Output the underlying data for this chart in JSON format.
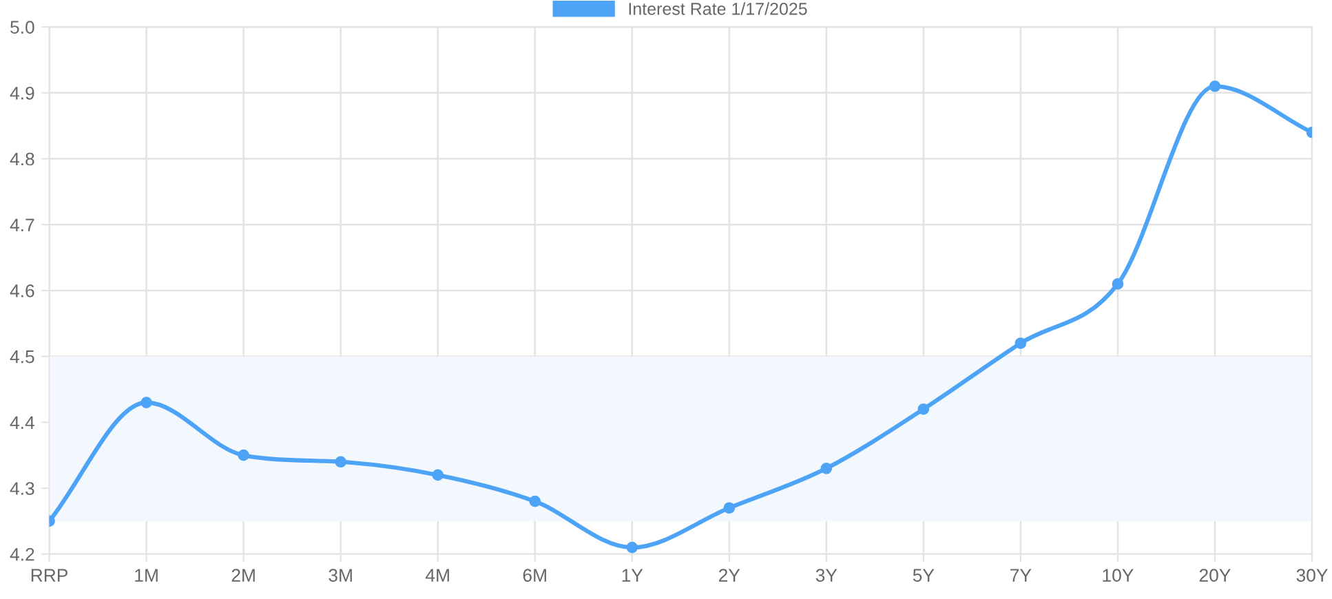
{
  "chart_data": {
    "type": "line",
    "categories": [
      "RRP",
      "1M",
      "2M",
      "3M",
      "4M",
      "6M",
      "1Y",
      "2Y",
      "3Y",
      "5Y",
      "7Y",
      "10Y",
      "20Y",
      "30Y"
    ],
    "series": [
      {
        "name": "Interest Rate 1/17/2025",
        "color": "#4da3f5",
        "values": [
          4.25,
          4.43,
          4.35,
          4.34,
          4.32,
          4.28,
          4.21,
          4.27,
          4.33,
          4.42,
          4.52,
          4.61,
          4.91,
          4.84
        ]
      }
    ],
    "ylim": [
      4.2,
      5.0
    ],
    "yticks": [
      {
        "value": 4.2,
        "label": "4.2"
      },
      {
        "value": 4.3,
        "label": "4.3"
      },
      {
        "value": 4.4,
        "label": "4.4"
      },
      {
        "value": 4.5,
        "label": "4.5"
      },
      {
        "value": 4.6,
        "label": "4.6"
      },
      {
        "value": 4.7,
        "label": "4.7"
      },
      {
        "value": 4.8,
        "label": "4.8"
      },
      {
        "value": 4.9,
        "label": "4.9"
      },
      {
        "value": 5.0,
        "label": "5.0"
      }
    ],
    "bands": [
      {
        "axis": "y",
        "from": 4.25,
        "to": 4.5,
        "color": "#f3f8fe"
      }
    ],
    "grid": true,
    "legend": "top",
    "marker": "circle",
    "line_style": "solid"
  }
}
